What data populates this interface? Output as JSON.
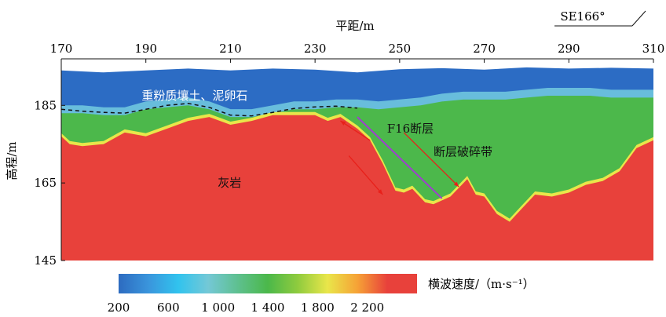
{
  "chart_data": {
    "type": "heatmap",
    "title": "",
    "xlabel": "平距/m",
    "ylabel": "高程/m",
    "orientation_label": "SE166°",
    "xlim": [
      170,
      310
    ],
    "ylim": [
      145,
      197
    ],
    "xticks": [
      "170",
      "190",
      "210",
      "230",
      "250",
      "270",
      "290",
      "310"
    ],
    "yticks": [
      "185",
      "165",
      "145"
    ],
    "colorbar": {
      "label": "横波速度/（m·s⁻¹）",
      "range": [
        200,
        2600
      ],
      "ticks": [
        "200",
        "600",
        "1 000",
        "1 400",
        "1 800",
        "2 200"
      ],
      "colors": [
        "#2d6bc0",
        "#3a95dc",
        "#31c3ee",
        "#74c8d6",
        "#5ec08f",
        "#4bb84a",
        "#8fcb3e",
        "#e9e64a",
        "#f6a236",
        "#e8413b",
        "#e8413b"
      ]
    },
    "annotations": [
      {
        "text": "重粉质壤土、泥卵石",
        "x": 189,
        "y": 186.5
      },
      {
        "text": "灰岩",
        "x": 207,
        "y": 164
      },
      {
        "text": "F16断层",
        "x": 247,
        "y": 178
      },
      {
        "text": "断层破碎带",
        "x": 258,
        "y": 172
      }
    ],
    "layer_boundary_dashed": {
      "x": [
        170,
        175,
        180,
        185,
        190,
        195,
        200,
        205,
        210,
        215,
        220,
        225,
        230,
        235,
        240
      ],
      "y": [
        184,
        183.5,
        183.2,
        183,
        184,
        185,
        185.5,
        184.5,
        182.5,
        182.3,
        183.2,
        184.2,
        184.6,
        184.8,
        184.3
      ]
    },
    "fault_line": {
      "x": [
        240,
        260
      ],
      "y": [
        182,
        161
      ]
    },
    "arrows": [
      {
        "from": [
          243,
          176
        ],
        "to": [
          236,
          181
        ]
      },
      {
        "from": [
          238,
          172
        ],
        "to": [
          246,
          162
        ]
      },
      {
        "from": [
          251,
          178
        ],
        "to": [
          264,
          164
        ]
      }
    ],
    "rock_surface": {
      "x": [
        170,
        172,
        175,
        180,
        185,
        190,
        195,
        200,
        205,
        210,
        215,
        220,
        225,
        230,
        233,
        236,
        240,
        243,
        246,
        249,
        251,
        253,
        256,
        258,
        262,
        266,
        268,
        270,
        273,
        276,
        279,
        282,
        286,
        290,
        294,
        298,
        302,
        306,
        310
      ],
      "y": [
        177,
        175,
        174.5,
        175,
        178,
        177,
        179,
        181,
        182,
        180,
        181,
        182.5,
        182.5,
        182.5,
        181,
        182,
        179,
        176,
        170,
        163,
        162.5,
        163.5,
        160,
        159.5,
        161.5,
        166,
        162,
        161.5,
        157,
        155,
        158.5,
        162,
        161.5,
        162.5,
        164.5,
        165.5,
        168,
        174,
        176
      ]
    },
    "green_boundary": {
      "x": [
        170,
        175,
        180,
        185,
        190,
        195,
        200,
        205,
        210,
        215,
        220,
        225,
        230,
        235,
        240,
        245,
        250,
        255,
        260,
        265,
        270,
        275,
        280,
        285,
        290,
        295,
        300,
        305,
        310
      ],
      "y": [
        183,
        183,
        182.5,
        182.5,
        184,
        184.5,
        185,
        184,
        182,
        182,
        183,
        184,
        184,
        184.5,
        184.5,
        184,
        184.5,
        185,
        186,
        186.5,
        186.5,
        186.5,
        187,
        187.5,
        187.5,
        187.5,
        187,
        187,
        187
      ]
    },
    "top_surface": {
      "x": [
        170,
        180,
        190,
        200,
        210,
        220,
        230,
        240,
        250,
        260,
        270,
        280,
        290,
        300,
        310
      ],
      "y": [
        194,
        193.5,
        194,
        194.5,
        194,
        194.5,
        194.2,
        193.5,
        194.3,
        194.6,
        194.2,
        194.8,
        194.5,
        194.7,
        194.5
      ]
    }
  }
}
